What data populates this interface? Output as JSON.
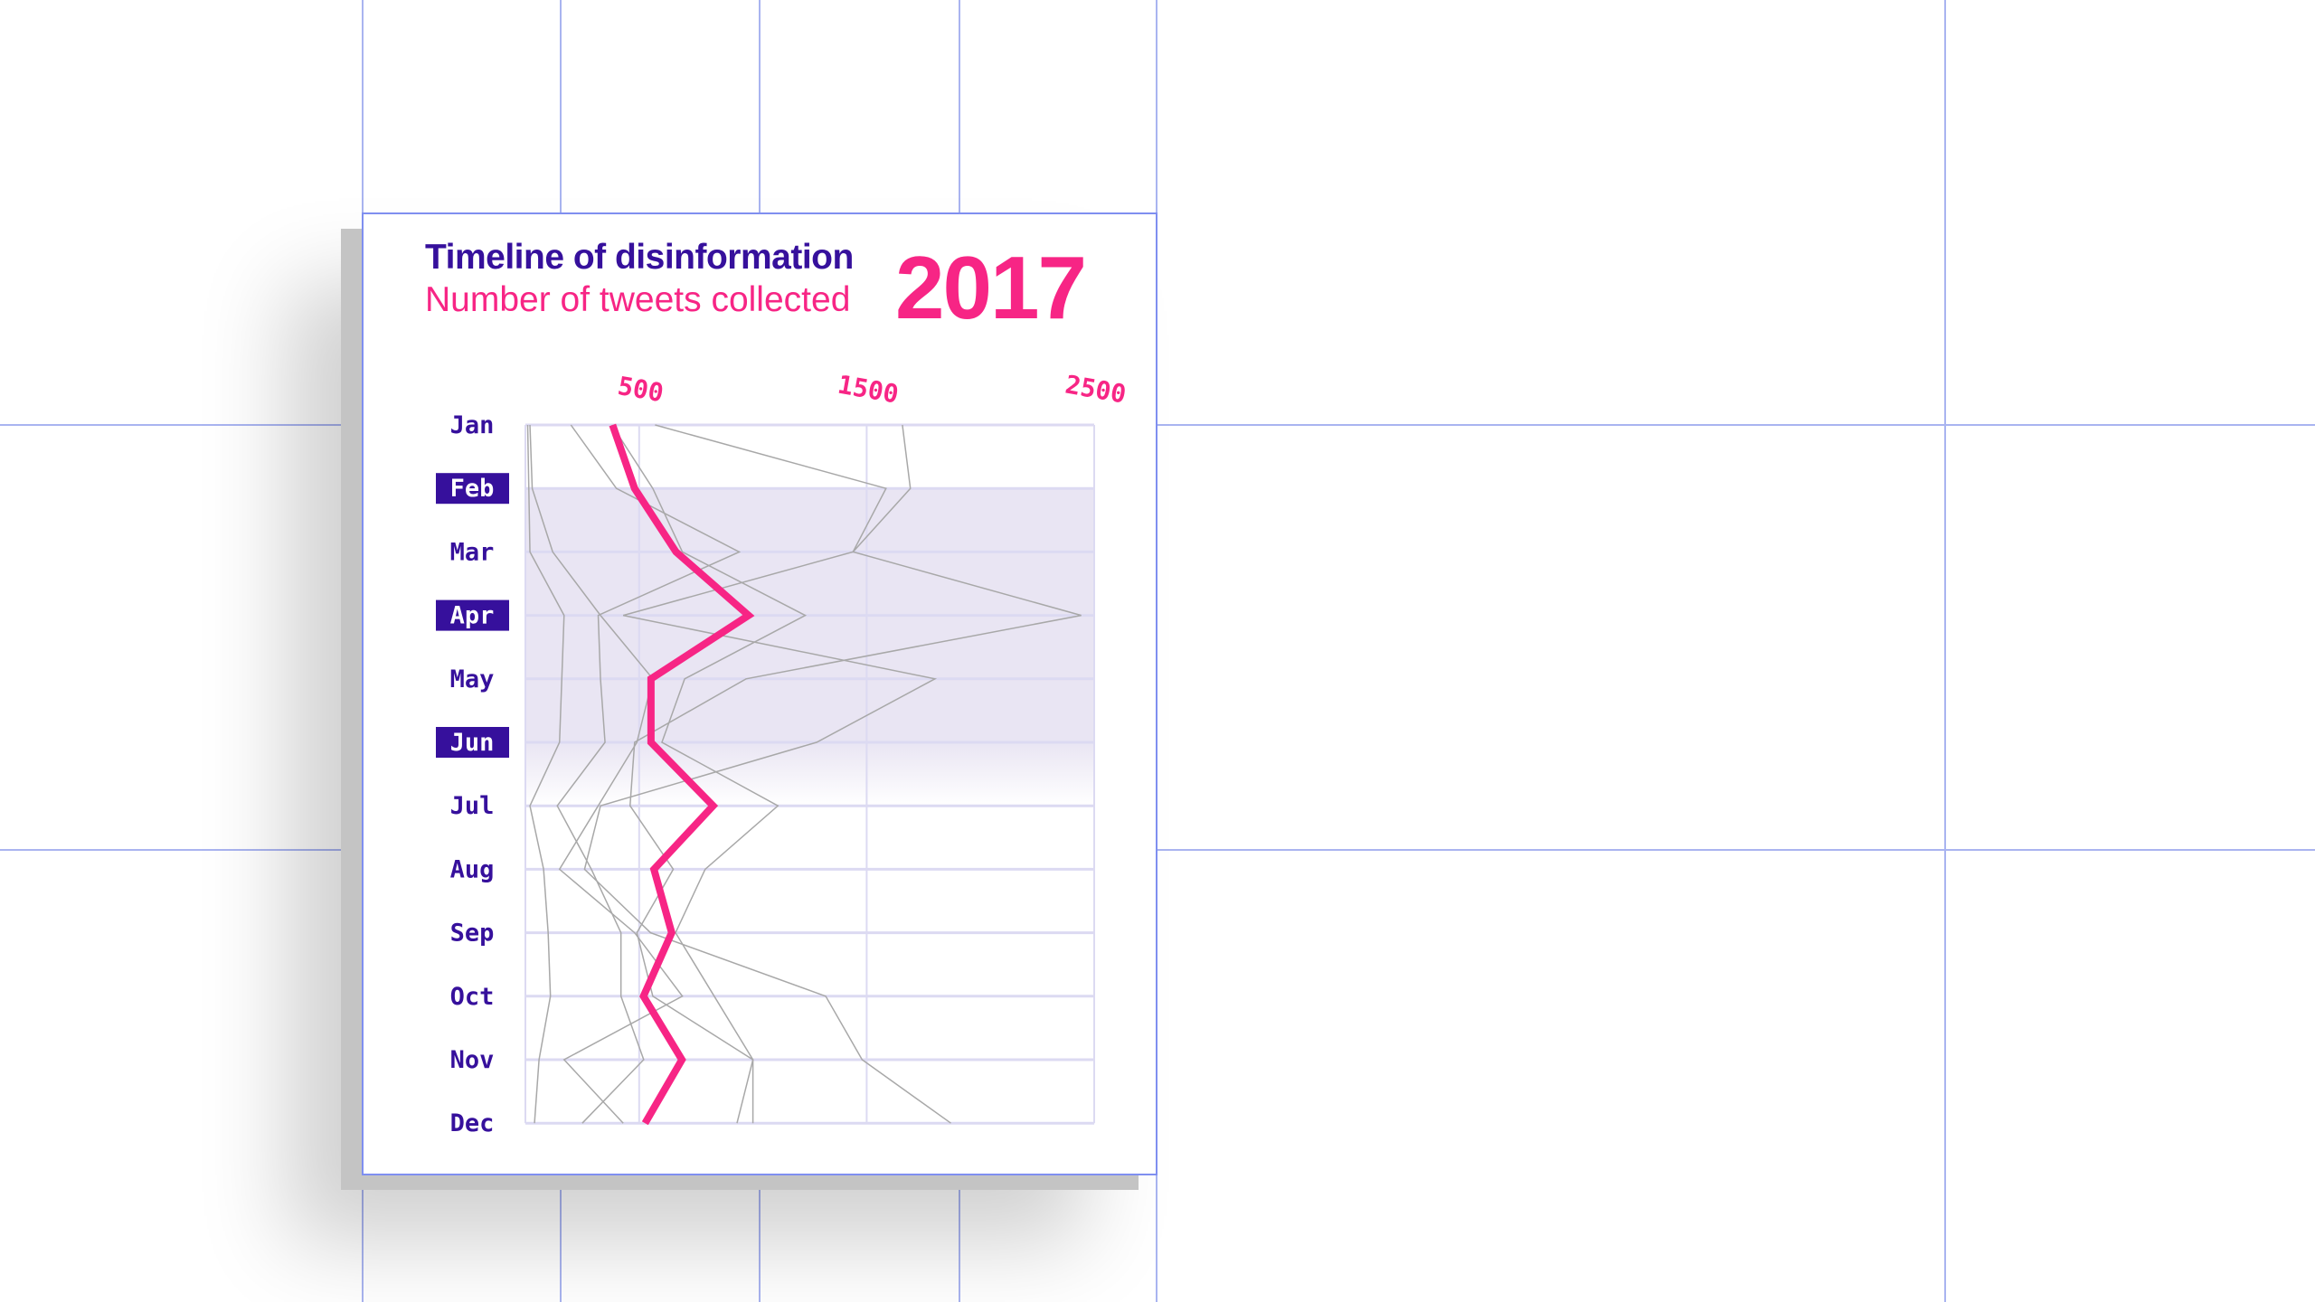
{
  "header": {
    "title": "Timeline of disinformation",
    "subtitle": "Number of tweets collected",
    "year": "2017"
  },
  "colors": {
    "accent": "#f72585",
    "primary": "#36109c",
    "highlight_band": "#e9e5f3",
    "other_series": "#a8a8a8",
    "grid": "#a9b4f0"
  },
  "chart_data": {
    "type": "line",
    "orientation": "vertical-time",
    "title": "Timeline of disinformation",
    "subtitle": "Number of tweets collected",
    "categories": [
      "Jan",
      "Feb",
      "Mar",
      "Apr",
      "May",
      "Jun",
      "Jul",
      "Aug",
      "Sep",
      "Oct",
      "Nov",
      "Dec"
    ],
    "highlighted_categories": [
      "Feb",
      "Apr",
      "Jun"
    ],
    "highlight_band": [
      "Feb",
      "Jun"
    ],
    "x_ticks": [
      "500",
      "1500",
      "2500"
    ],
    "x_tick_values": [
      500,
      1500,
      2500
    ],
    "xlim": [
      0,
      2500
    ],
    "grid": true,
    "series": [
      {
        "highlight": true,
        "values": [
          383,
          480,
          662,
          981,
          552,
          552,
          825,
          565,
          643,
          519,
          688,
          526
        ]
      },
      {
        "values": [
          10,
          15,
          20,
          170,
          160,
          150,
          20,
          80,
          100,
          110,
          60,
          40
        ]
      },
      {
        "values": [
          200,
          400,
          940,
          320,
          330,
          350,
          140,
          290,
          420,
          420,
          520,
          250
        ]
      },
      {
        "values": [
          380,
          560,
          690,
          1230,
          700,
          600,
          1110,
          790,
          660,
          830,
          1000,
          930
        ]
      },
      {
        "values": [
          570,
          1585,
          1440,
          430,
          1800,
          1280,
          330,
          260,
          550,
          1320,
          1480,
          1870
        ]
      },
      {
        "values": [
          1657,
          1692,
          1440,
          2443,
          970,
          480,
          460,
          650,
          490,
          560,
          1000,
          1000
        ]
      },
      {
        "values": [
          20,
          30,
          120,
          330,
          560,
          490,
          320,
          150,
          480,
          690,
          170,
          430
        ]
      }
    ]
  }
}
